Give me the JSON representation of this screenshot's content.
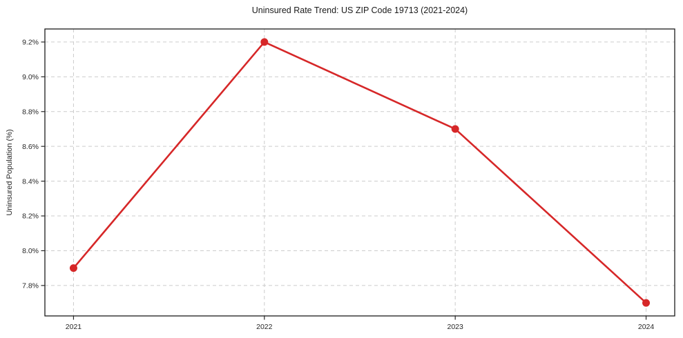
{
  "chart_data": {
    "type": "line",
    "title": "Uninsured Rate Trend: US ZIP Code 19713 (2021-2024)",
    "xlabel": "",
    "ylabel": "Uninsured Population (%)",
    "x": [
      2021,
      2022,
      2023,
      2024
    ],
    "values": [
      7.9,
      9.2,
      8.7,
      7.7
    ],
    "xlim": [
      2020.85,
      2024.15
    ],
    "ylim": [
      7.625,
      9.275
    ],
    "xticks": {
      "values": [
        2021,
        2022,
        2023,
        2024
      ],
      "labels": [
        "2021",
        "2022",
        "2023",
        "2024"
      ]
    },
    "yticks": {
      "values": [
        7.8,
        8.0,
        8.2,
        8.4,
        8.6,
        8.8,
        9.0,
        9.2
      ],
      "labels": [
        "7.8%",
        "8.0%",
        "8.2%",
        "8.4%",
        "8.6%",
        "8.8%",
        "9.0%",
        "9.2%"
      ]
    },
    "grid": true,
    "legend": false,
    "line_color": "#d62728",
    "marker": "circle",
    "grid_color": "#cccccc",
    "spine_color": "#1a1a1a",
    "tick_color": "#262626",
    "text_color": "#262626",
    "background_color": "#ffffff"
  }
}
